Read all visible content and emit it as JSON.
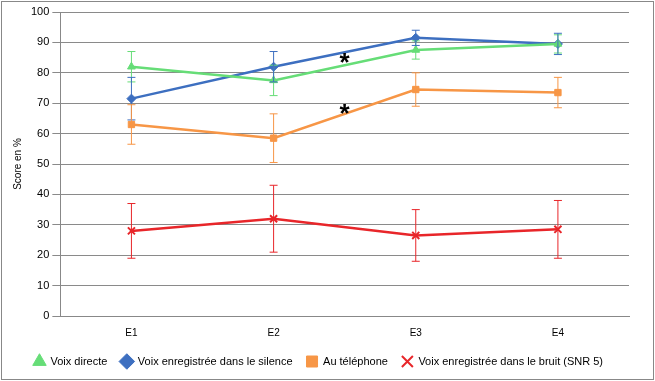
{
  "chart_data": {
    "type": "line",
    "y_label": "Score en %",
    "categories": [
      "E1",
      "E2",
      "E3",
      "E4"
    ],
    "ylim": [
      0,
      100
    ],
    "yticks": [
      0,
      10,
      20,
      30,
      40,
      50,
      60,
      70,
      80,
      90,
      100
    ],
    "grid": true,
    "legend": "bottom",
    "series": [
      {
        "name": "Voix directe",
        "color": "#66dd77",
        "marker": "triangle",
        "values": [
          82,
          77.5,
          87.5,
          89.5
        ],
        "errors": [
          5,
          5,
          3,
          3
        ]
      },
      {
        "name": "Voix enregistrée dans le silence",
        "color": "#3d6fc0",
        "marker": "diamond",
        "values": [
          71.5,
          82,
          91.5,
          89.5
        ],
        "errors": [
          7,
          5,
          2.5,
          3.5
        ]
      },
      {
        "name": "Au téléphone",
        "color": "#f79646",
        "marker": "square",
        "values": [
          63,
          58.5,
          74.5,
          73.5
        ],
        "errors": [
          6.5,
          8,
          5.5,
          5
        ]
      },
      {
        "name": "Voix enregistrée dans le bruit (SNR 5)",
        "color": "#e8262a",
        "marker": "cross",
        "values": [
          28,
          32,
          26.5,
          28.5
        ],
        "errors": [
          9,
          11,
          8.5,
          9.5
        ]
      }
    ],
    "annotations": [
      {
        "text": "*",
        "x": 1.5,
        "y": 85
      },
      {
        "text": "*",
        "x": 1.5,
        "y": 68
      }
    ]
  }
}
